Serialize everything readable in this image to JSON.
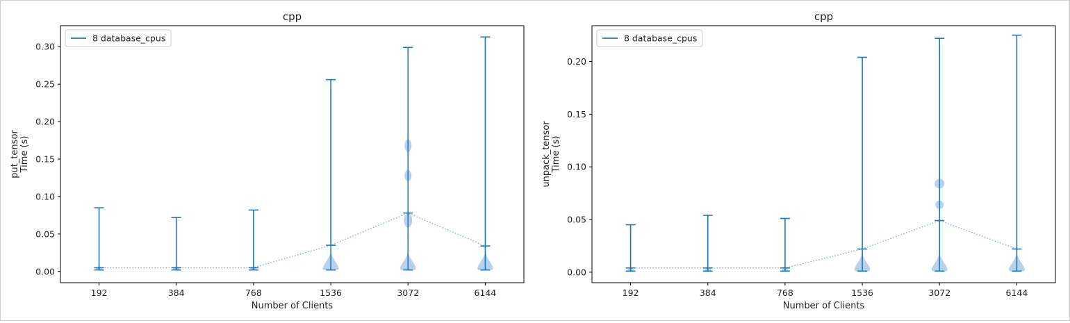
{
  "chart_data": [
    {
      "type": "violin",
      "title": "cpp",
      "xlabel": "Number of Clients",
      "ylabel": [
        "put_tensor",
        "Time (s)"
      ],
      "categories": [
        "192",
        "384",
        "768",
        "1536",
        "3072",
        "6144"
      ],
      "ylim": [
        -0.015,
        0.328
      ],
      "yticks": [
        "0.00",
        "0.05",
        "0.10",
        "0.15",
        "0.20",
        "0.25",
        "0.30"
      ],
      "legend": {
        "location": "upper-left",
        "label": "8 database_cpus"
      },
      "color": "#1f77b4",
      "violin_color": "#9ec3e6",
      "series": [
        {
          "name": "8 database_cpus",
          "min": [
            0.002,
            0.002,
            0.002,
            0.002,
            0.002,
            0.002
          ],
          "max": [
            0.085,
            0.072,
            0.082,
            0.256,
            0.299,
            0.313
          ],
          "mean": [
            0.005,
            0.005,
            0.005,
            0.035,
            0.078,
            0.034
          ]
        }
      ]
    },
    {
      "type": "violin",
      "title": "cpp",
      "xlabel": "Number of Clients",
      "ylabel": [
        "unpack_tensor",
        "Time (s)"
      ],
      "categories": [
        "192",
        "384",
        "768",
        "1536",
        "3072",
        "6144"
      ],
      "ylim": [
        -0.01,
        0.234
      ],
      "yticks": [
        "0.00",
        "0.05",
        "0.10",
        "0.15",
        "0.20"
      ],
      "legend": {
        "location": "upper-left",
        "label": "8 database_cpus"
      },
      "color": "#1f77b4",
      "violin_color": "#9ec3e6",
      "series": [
        {
          "name": "8 database_cpus",
          "min": [
            0.001,
            0.001,
            0.001,
            0.001,
            0.001,
            0.001
          ],
          "max": [
            0.045,
            0.054,
            0.051,
            0.204,
            0.222,
            0.225
          ],
          "mean": [
            0.004,
            0.004,
            0.004,
            0.022,
            0.049,
            0.022
          ]
        }
      ]
    }
  ]
}
